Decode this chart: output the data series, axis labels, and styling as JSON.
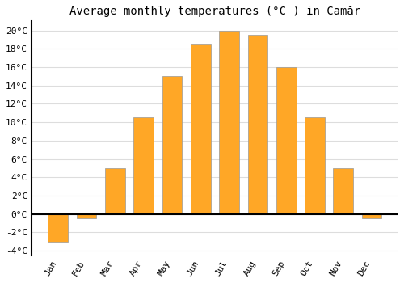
{
  "title": "Average monthly temperatures (°C ) in Camăr",
  "months": [
    "Jan",
    "Feb",
    "Mar",
    "Apr",
    "May",
    "Jun",
    "Jul",
    "Aug",
    "Sep",
    "Oct",
    "Nov",
    "Dec"
  ],
  "values": [
    -3.0,
    -0.5,
    5.0,
    10.5,
    15.0,
    18.5,
    20.0,
    19.5,
    16.0,
    10.5,
    5.0,
    -0.5
  ],
  "bar_color": "#FFA726",
  "bar_edge_color": "#999999",
  "ylim": [
    -4.5,
    21
  ],
  "yticks": [
    -4,
    -2,
    0,
    2,
    4,
    6,
    8,
    10,
    12,
    14,
    16,
    18,
    20
  ],
  "background_color": "#ffffff",
  "grid_color": "#dddddd",
  "zero_line_color": "#000000",
  "spine_color": "#000000",
  "title_fontsize": 10,
  "tick_fontsize": 8
}
